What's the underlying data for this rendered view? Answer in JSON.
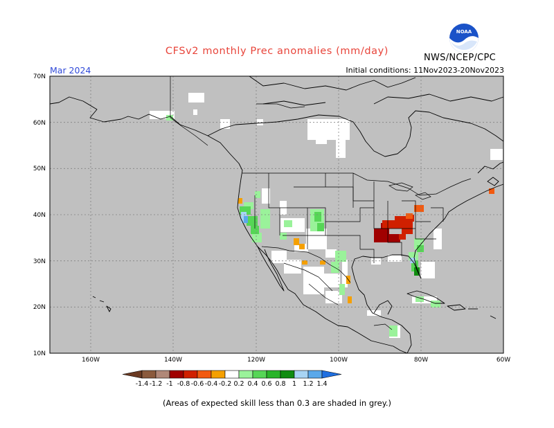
{
  "title": "CFSv2 monthly Prec anomalies (mm/day)",
  "agency": "NWS/NCEP/CPC",
  "logo_text": "NOAA",
  "valid_month": "Mar 2024",
  "initial_conditions": "Initial conditions: 11Nov2023-20Nov2023",
  "footnote": "(Areas of expected skill less than 0.3 are shaded in grey.)",
  "colors": {
    "ocean_land_low_skill": "#c0c0c0",
    "no_skill_white": "#ffffff",
    "coastline": "#000000"
  },
  "axes": {
    "lat_labels": [
      "70N",
      "60N",
      "50N",
      "40N",
      "30N",
      "20N",
      "10N"
    ],
    "lon_labels": [
      "160W",
      "140W",
      "120W",
      "100W",
      "80W",
      "60W"
    ]
  },
  "colorbar": {
    "labels": [
      "-1.4",
      "-1.2",
      "-1",
      "-0.8",
      "-0.6",
      "-0.4",
      "-0.2",
      "0.2",
      "0.4",
      "0.6",
      "0.8",
      "1",
      "1.2",
      "1.4"
    ],
    "colors": [
      "#6b3a22",
      "#8b5a3c",
      "#b08878",
      "#a00000",
      "#d02000",
      "#f25a10",
      "#f5a000",
      "#ffffff",
      "#9af29a",
      "#56d656",
      "#29b429",
      "#108c10",
      "#a8d4f4",
      "#5aa8ea",
      "#1f6fe0"
    ]
  },
  "notable_anomalies": [
    {
      "region": "Lower Mississippi / Ohio valley",
      "sign": "negative",
      "range": "-0.6 to -1"
    },
    {
      "region": "Florida peninsula",
      "sign": "positive",
      "range": "0.4 to 1.4"
    },
    {
      "region": "California coast",
      "sign": "positive",
      "range": "0.4 to 1.2"
    }
  ]
}
